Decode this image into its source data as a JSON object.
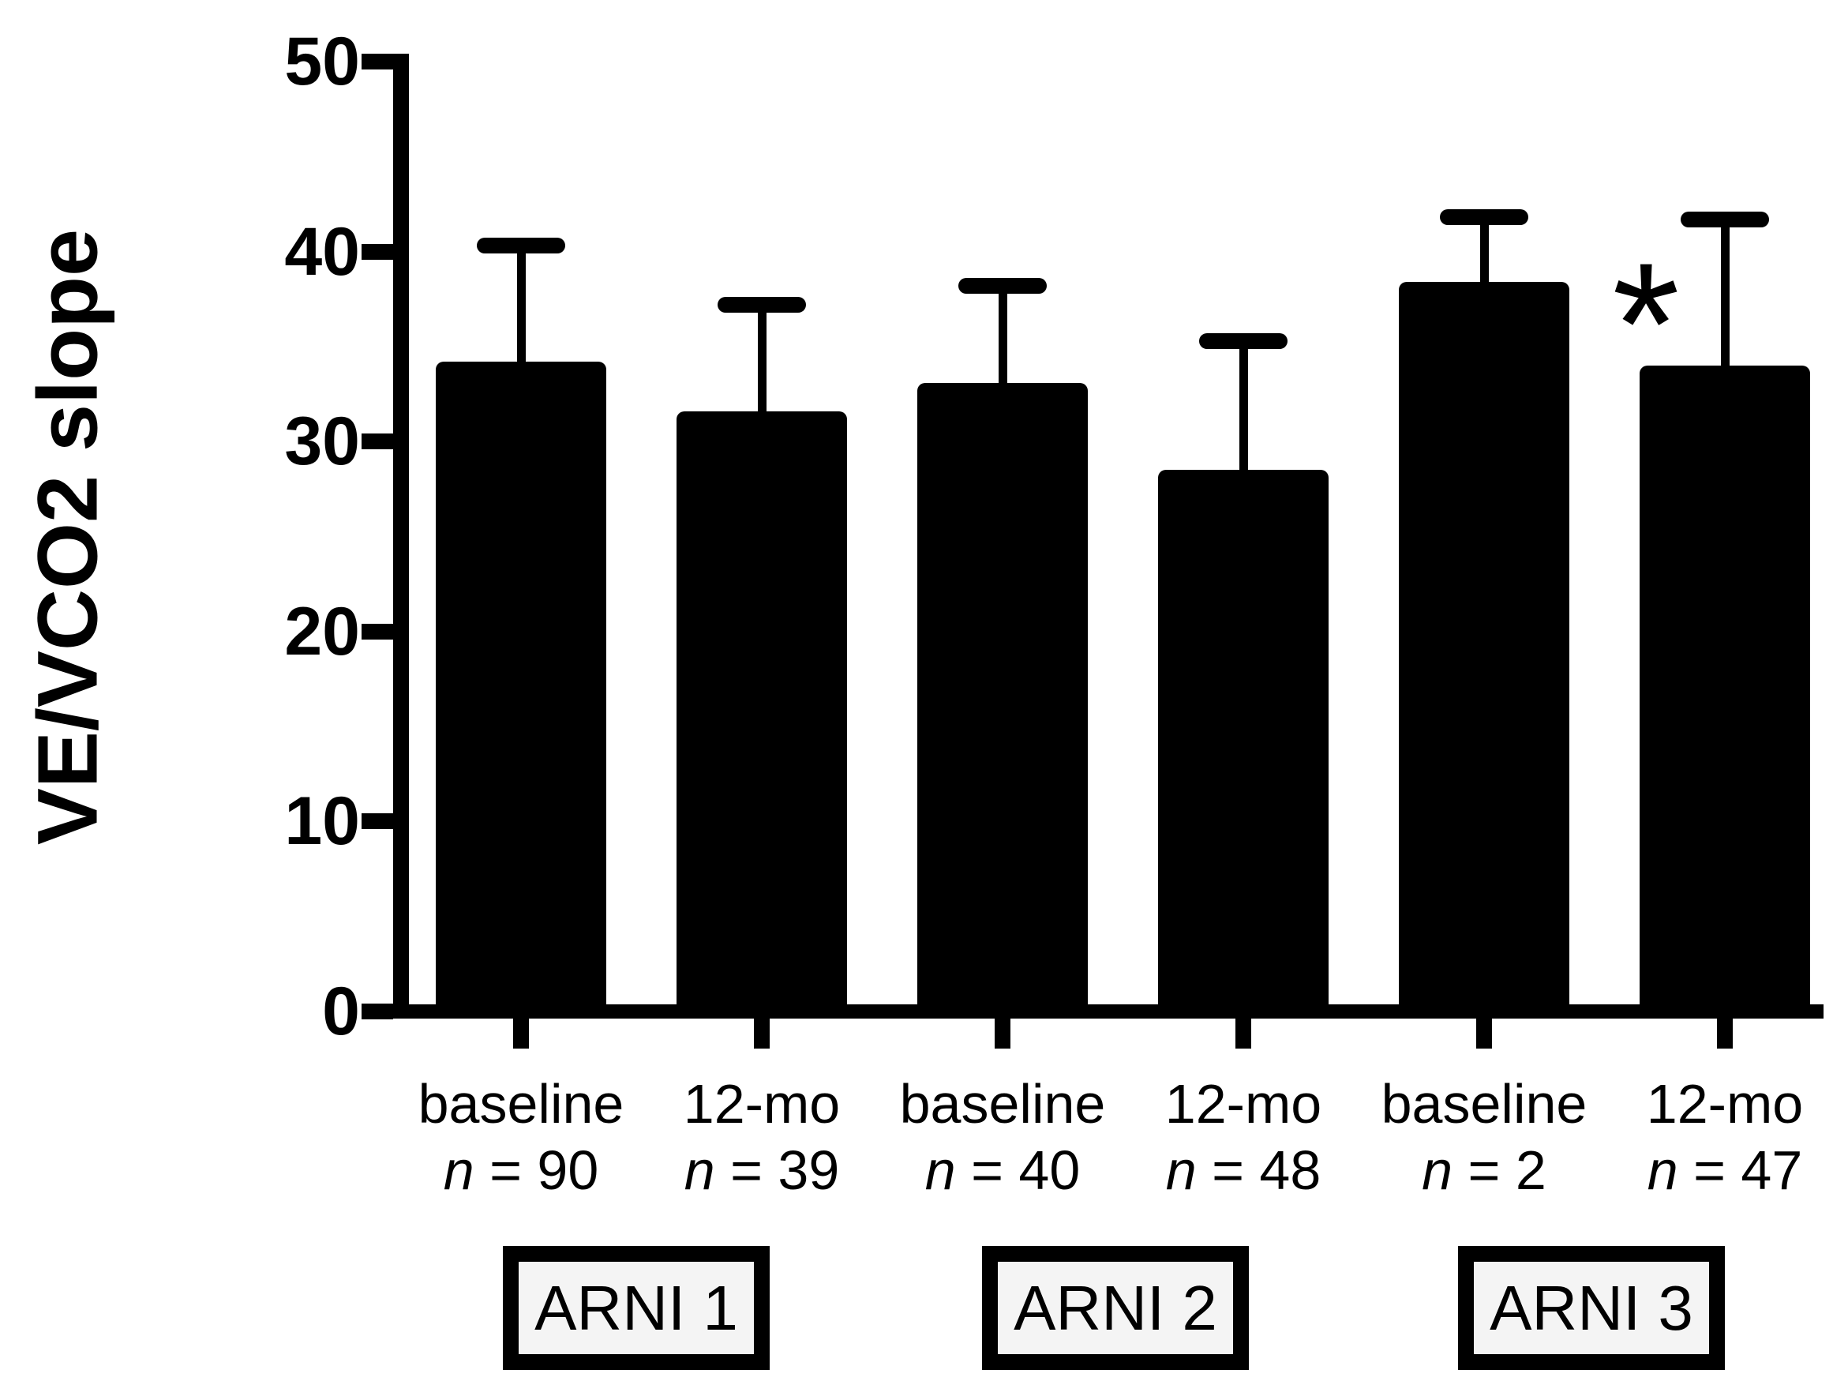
{
  "figure": {
    "background": "#ffffff",
    "ink_color": "#000000",
    "group_box_fill": "#f4f4f4"
  },
  "chart_data": {
    "type": "bar",
    "title": "",
    "xlabel": "",
    "ylabel": "VE/VCO2 slope",
    "ylim": [
      0,
      50
    ],
    "yticks": [
      0,
      10,
      20,
      30,
      40,
      50
    ],
    "grid": false,
    "legend": "none",
    "bar_color": "#000000",
    "error_bar_style": "upper SD whisker with cap",
    "categories": [
      "baseline",
      "12-mo",
      "baseline",
      "12-mo",
      "baseline",
      "12-mo"
    ],
    "n_labels": [
      "n = 90",
      "n = 39",
      "n = 40",
      "n = 48",
      "n = 2",
      "n = 47"
    ],
    "values": [
      34.2,
      31.6,
      33.1,
      28.5,
      38.4,
      34.0
    ],
    "errors_sd": [
      6.1,
      5.6,
      5.1,
      6.8,
      3.4,
      7.7
    ],
    "error_tops": [
      40.3,
      37.2,
      38.2,
      35.3,
      41.8,
      41.7
    ],
    "annotations": [
      {
        "bar_index": 5,
        "text": "*",
        "meaning": "significance marker left of error bar"
      }
    ],
    "groups": [
      {
        "label": "ARNI 1",
        "bars": [
          0,
          1
        ]
      },
      {
        "label": "ARNI 2",
        "bars": [
          2,
          3
        ]
      },
      {
        "label": "ARNI 3",
        "bars": [
          4,
          5
        ]
      }
    ]
  }
}
